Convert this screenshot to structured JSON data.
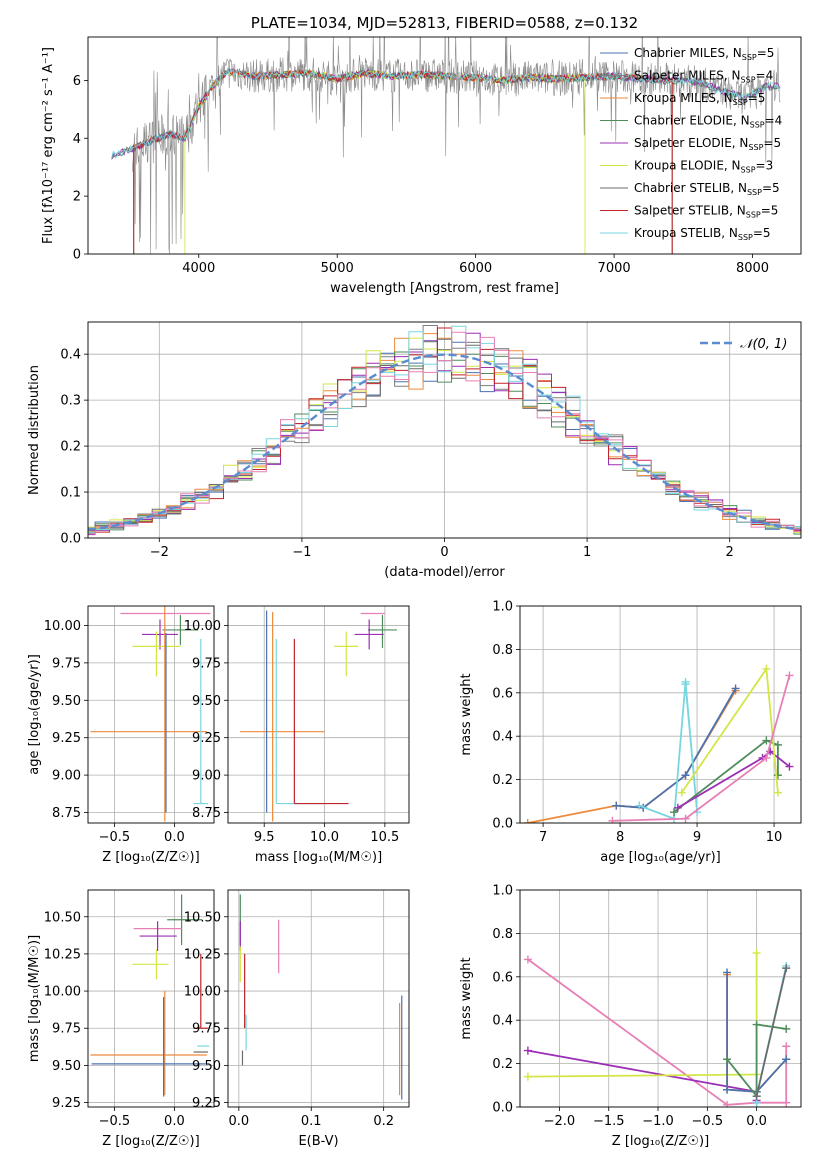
{
  "colors": {
    "Chabrier MILES": "#4c72b0",
    "Salpeter MILES": "#7f7f7f",
    "Kroupa MILES": "#ee8a3a",
    "Chabrier ELODIE": "#4f8d5b",
    "Salpeter ELODIE": "#9b2fb5",
    "Kroupa ELODIE": "#d4e645",
    "Chabrier STELIB": "#6b6b6b",
    "Salpeter STELIB": "#c0232a",
    "Kroupa STELIB": "#78d6e0",
    "Pink": "#e77fb5"
  },
  "chart_data": [
    {
      "id": "spectrum",
      "type": "line",
      "title": "PLATE=1034, MJD=52813, FIBERID=0588, z=0.132",
      "xlabel": "wavelength [Angstrom, rest frame]",
      "ylabel": "Flux [fλ10⁻¹⁷ erg cm⁻² s⁻¹ A⁻¹]",
      "xlim": [
        3200,
        8350
      ],
      "ylim": [
        0,
        7.5
      ],
      "xticks": [
        "4000",
        "5000",
        "6000",
        "7000",
        "8000"
      ],
      "yticks": [
        "0",
        "2",
        "4",
        "6"
      ],
      "grid": false,
      "legend_position": "right",
      "legend": [
        {
          "name": "Chabrier MILES",
          "label": "Chabrier MILES, N",
          "sub": "SSP",
          "tail": "=5"
        },
        {
          "name": "Salpeter MILES",
          "label": "Salpeter MILES, N",
          "sub": "SSP",
          "tail": "=4"
        },
        {
          "name": "Kroupa MILES",
          "label": "Kroupa MILES, N",
          "sub": "SSP",
          "tail": "=5"
        },
        {
          "name": "Chabrier ELODIE",
          "label": "Chabrier ELODIE, N",
          "sub": "SSP",
          "tail": "=4"
        },
        {
          "name": "Salpeter ELODIE",
          "label": "Salpeter ELODIE, N",
          "sub": "SSP",
          "tail": "=5"
        },
        {
          "name": "Kroupa ELODIE",
          "label": "Kroupa ELODIE, N",
          "sub": "SSP",
          "tail": "=3"
        },
        {
          "name": "Chabrier STELIB",
          "label": "Chabrier STELIB, N",
          "sub": "SSP",
          "tail": "=5"
        },
        {
          "name": "Salpeter STELIB",
          "label": "Salpeter STELIB, N",
          "sub": "SSP",
          "tail": "=5"
        },
        {
          "name": "Kroupa STELIB",
          "label": "Kroupa STELIB, N",
          "sub": "SSP",
          "tail": "=5"
        }
      ],
      "continuum": [
        [
          3370,
          3.4
        ],
        [
          3500,
          3.6
        ],
        [
          3650,
          3.9
        ],
        [
          3800,
          4.15
        ],
        [
          3900,
          4.0
        ],
        [
          4000,
          5.1
        ],
        [
          4100,
          5.8
        ],
        [
          4200,
          6.3
        ],
        [
          4400,
          6.15
        ],
        [
          4600,
          6.2
        ],
        [
          4800,
          6.25
        ],
        [
          5000,
          6.05
        ],
        [
          5200,
          6.25
        ],
        [
          5400,
          6.15
        ],
        [
          5600,
          6.2
        ],
        [
          5800,
          6.15
        ],
        [
          6000,
          6.1
        ],
        [
          6200,
          6.0
        ],
        [
          6400,
          6.1
        ],
        [
          6600,
          6.05
        ],
        [
          6800,
          6.1
        ],
        [
          7000,
          6.15
        ],
        [
          7200,
          6.05
        ],
        [
          7400,
          6.0
        ],
        [
          7600,
          5.95
        ],
        [
          7800,
          5.6
        ],
        [
          7950,
          5.4
        ],
        [
          8100,
          5.8
        ]
      ],
      "cutoffs": {
        "Chabrier MILES": [
          3530,
          7420
        ],
        "Salpeter MILES": [
          3530,
          7420
        ],
        "Kroupa MILES": [
          3530,
          7420
        ],
        "Kroupa ELODIE": [
          3900,
          6790
        ],
        "Salpeter STELIB": [
          3530,
          7420
        ]
      },
      "noise_range": [
        3520,
        8200
      ]
    },
    {
      "id": "residuals",
      "type": "step",
      "xlabel": "(data-model)/error",
      "ylabel": "Normed distribution",
      "xlim": [
        -2.5,
        2.5
      ],
      "ylim": [
        0,
        0.47
      ],
      "xticks": [
        "−2",
        "−1",
        "0",
        "1",
        "2"
      ],
      "yticks": [
        "0.0",
        "0.1",
        "0.2",
        "0.3",
        "0.4"
      ],
      "grid": true,
      "legend_position": "top-right",
      "gaussian_label": "𝒩(0, 1)",
      "bin_width": 0.1
    },
    {
      "id": "age-Z",
      "type": "errorbar",
      "xlabel": "Z [log₁₀(Z/Z☉)]",
      "ylabel": "age  [log₁₀(age/yr)]",
      "xlim": [
        -0.72,
        0.33
      ],
      "ylim": [
        8.68,
        10.13
      ],
      "xticks": [
        "−0.5",
        "0.0"
      ],
      "yticks": [
        "8.75",
        "9.00",
        "9.25",
        "9.50",
        "9.75",
        "10.00"
      ],
      "grid": true,
      "points": [
        {
          "series": "Pink",
          "x": -0.05,
          "y": 10.08,
          "xerr": [
            0.4,
            0.35
          ],
          "yerr": [
            0.0,
            0.0
          ]
        },
        {
          "series": "Chabrier ELODIE",
          "x": 0.05,
          "y": 9.97,
          "xerr": [
            0.15,
            0.15
          ],
          "yerr": [
            0.1,
            0.1
          ]
        },
        {
          "series": "Salpeter ELODIE",
          "x": -0.12,
          "y": 9.94,
          "xerr": [
            0.15,
            0.15
          ],
          "yerr": [
            0.1,
            0.1
          ]
        },
        {
          "series": "Kroupa ELODIE",
          "x": -0.15,
          "y": 9.86,
          "xerr": [
            0.2,
            0.2
          ],
          "yerr": [
            0.2,
            0.1
          ]
        },
        {
          "series": "Kroupa MILES",
          "x": -0.08,
          "y": 9.29,
          "xerr": [
            0.62,
            0.35
          ],
          "yerr": [
            0.6,
            0.85
          ]
        },
        {
          "series": "Kroupa STELIB",
          "x": 0.22,
          "y": 8.81,
          "xerr": [
            0.06,
            0.06
          ],
          "yerr": [
            0.0,
            1.1
          ]
        },
        {
          "series": "Chabrier MILES",
          "x": -0.07,
          "y": 9.85,
          "xerr": [
            0.0,
            0.0
          ],
          "yerr": [
            1.1,
            0.1
          ]
        }
      ]
    },
    {
      "id": "age-mass",
      "type": "errorbar",
      "xlabel": "mass [log₁₀(M/M☉)]",
      "ylabel": "",
      "xlim": [
        9.2,
        10.7
      ],
      "ylim": [
        8.68,
        10.13
      ],
      "xticks": [
        "9.5",
        "10.0",
        "10.5"
      ],
      "yticks": [
        "8.75",
        "9.00",
        "9.25",
        "9.50",
        "9.75",
        "10.00"
      ],
      "grid": true,
      "points": [
        {
          "series": "Pink",
          "x": 10.4,
          "y": 10.08,
          "xerr": [
            0.1,
            0.1
          ],
          "yerr": [
            0.0,
            0.0
          ]
        },
        {
          "series": "Chabrier ELODIE",
          "x": 10.48,
          "y": 9.97,
          "xerr": [
            0.12,
            0.12
          ],
          "yerr": [
            0.12,
            0.1
          ]
        },
        {
          "series": "Salpeter ELODIE",
          "x": 10.37,
          "y": 9.94,
          "xerr": [
            0.12,
            0.12
          ],
          "yerr": [
            0.1,
            0.1
          ]
        },
        {
          "series": "Kroupa ELODIE",
          "x": 10.18,
          "y": 9.86,
          "xerr": [
            0.1,
            0.1
          ],
          "yerr": [
            0.2,
            0.1
          ]
        },
        {
          "series": "Kroupa MILES",
          "x": 9.57,
          "y": 9.29,
          "xerr": [
            0.27,
            0.43
          ],
          "yerr": [
            0.6,
            0.8
          ]
        },
        {
          "series": "Kroupa STELIB",
          "x": 9.6,
          "y": 8.81,
          "xerr": [
            0.0,
            0.42
          ],
          "yerr": [
            0.0,
            1.1
          ]
        },
        {
          "series": "Salpeter STELIB",
          "x": 9.75,
          "y": 8.81,
          "xerr": [
            0.0,
            0.45
          ],
          "yerr": [
            0.0,
            1.1
          ]
        },
        {
          "series": "Chabrier MILES",
          "x": 9.52,
          "y": 9.85,
          "xerr": [
            0.0,
            0.0
          ],
          "yerr": [
            1.1,
            0.25
          ]
        }
      ]
    },
    {
      "id": "weight-age",
      "type": "line",
      "xlabel": "age  [log₁₀(age/yr)]",
      "ylabel": "mass weight",
      "xlim": [
        6.7,
        10.35
      ],
      "ylim": [
        0,
        1
      ],
      "xticks": [
        "7",
        "8",
        "9",
        "10"
      ],
      "yticks": [
        "0.0",
        "0.2",
        "0.4",
        "0.6",
        "0.8",
        "1.0"
      ],
      "grid": true,
      "series": [
        {
          "name": "Kroupa MILES",
          "x": [
            6.8,
            7.95,
            8.3,
            8.85,
            9.5
          ],
          "y": [
            0.0,
            0.08,
            0.07,
            0.22,
            0.61
          ]
        },
        {
          "name": "Chabrier MILES",
          "x": [
            7.95,
            8.3,
            8.85,
            9.5
          ],
          "y": [
            0.08,
            0.07,
            0.22,
            0.62
          ]
        },
        {
          "name": "Kroupa STELIB",
          "x": [
            8.25,
            8.7,
            8.85,
            9.0,
            8.85
          ],
          "y": [
            0.08,
            0.02,
            0.65,
            0.05,
            0.64
          ]
        },
        {
          "name": "Chabrier ELODIE",
          "x": [
            8.7,
            9.9,
            10.05,
            10.05
          ],
          "y": [
            0.05,
            0.38,
            0.36,
            0.22
          ]
        },
        {
          "name": "Salpeter ELODIE",
          "x": [
            8.75,
            9.85,
            9.95,
            10.2
          ],
          "y": [
            0.07,
            0.3,
            0.33,
            0.26
          ]
        },
        {
          "name": "Kroupa ELODIE",
          "x": [
            8.8,
            9.9,
            10.05
          ],
          "y": [
            0.14,
            0.71,
            0.14
          ]
        },
        {
          "name": "Pink",
          "x": [
            7.9,
            8.85,
            9.9,
            10.2
          ],
          "y": [
            0.01,
            0.02,
            0.3,
            0.68
          ]
        }
      ]
    },
    {
      "id": "mass-Z",
      "type": "errorbar",
      "xlabel": "Z [log₁₀(Z/Z☉)]",
      "ylabel": "mass [log₁₀(M/M☉)]",
      "xlim": [
        -0.72,
        0.33
      ],
      "ylim": [
        9.22,
        10.68
      ],
      "xticks": [
        "−0.5",
        "0.0"
      ],
      "yticks": [
        "9.25",
        "9.50",
        "9.75",
        "10.00",
        "10.25",
        "10.50"
      ],
      "grid": true,
      "points": [
        {
          "series": "Chabrier ELODIE",
          "x": 0.06,
          "y": 10.48,
          "xerr": [
            0.12,
            0.17
          ],
          "yerr": [
            0.17,
            0.17
          ]
        },
        {
          "series": "Pink",
          "x": -0.09,
          "y": 10.42,
          "xerr": [
            0.25,
            0.15
          ],
          "yerr": [
            0.0,
            0.0
          ]
        },
        {
          "series": "Salpeter ELODIE",
          "x": -0.14,
          "y": 10.37,
          "xerr": [
            0.15,
            0.16
          ],
          "yerr": [
            0.1,
            0.1
          ]
        },
        {
          "series": "Kroupa ELODIE",
          "x": -0.15,
          "y": 10.18,
          "xerr": [
            0.2,
            0.1
          ],
          "yerr": [
            0.1,
            0.1
          ]
        },
        {
          "series": "Salpeter STELIB",
          "x": 0.22,
          "y": 9.75,
          "xerr": [
            0.06,
            0.06
          ],
          "yerr": [
            0.0,
            0.5
          ]
        },
        {
          "series": "Kroupa STELIB",
          "x": 0.25,
          "y": 9.63,
          "xerr": [
            0.06,
            0.04
          ],
          "yerr": [
            0.0,
            0.0
          ]
        },
        {
          "series": "Chabrier STELIB",
          "x": 0.22,
          "y": 9.59,
          "xerr": [
            0.06,
            0.06
          ],
          "yerr": [
            0.0,
            0.0
          ]
        },
        {
          "series": "Kroupa MILES",
          "x": -0.08,
          "y": 9.57,
          "xerr": [
            0.62,
            0.35
          ],
          "yerr": [
            0.27,
            0.43
          ]
        },
        {
          "series": "Chabrier MILES",
          "x": -0.09,
          "y": 9.51,
          "xerr": [
            0.6,
            0.35
          ],
          "yerr": [
            0.22,
            0.45
          ]
        }
      ]
    },
    {
      "id": "mass-ebv",
      "type": "errorbar",
      "xlabel": "E(B-V)",
      "ylabel": "",
      "xlim": [
        -0.015,
        0.235
      ],
      "ylim": [
        9.22,
        10.68
      ],
      "xticks": [
        "0.0",
        "0.1",
        "0.2"
      ],
      "yticks": [
        "9.25",
        "9.50",
        "9.75",
        "10.00",
        "10.25",
        "10.50"
      ],
      "grid": true,
      "points": [
        {
          "series": "Chabrier ELODIE",
          "x": 0.002,
          "y": 10.48,
          "xerr": [
            0,
            0
          ],
          "yerr": [
            0.17,
            0.17
          ]
        },
        {
          "series": "Salpeter ELODIE",
          "x": 0.002,
          "y": 10.37,
          "xerr": [
            0,
            0
          ],
          "yerr": [
            0.1,
            0.1
          ]
        },
        {
          "series": "Pink",
          "x": 0.055,
          "y": 10.3,
          "xerr": [
            0,
            0
          ],
          "yerr": [
            0.18,
            0.18
          ]
        },
        {
          "series": "Kroupa ELODIE",
          "x": 0.002,
          "y": 10.18,
          "xerr": [
            0,
            0
          ],
          "yerr": [
            0.12,
            0.12
          ]
        },
        {
          "series": "Salpeter STELIB",
          "x": 0.008,
          "y": 10.0,
          "xerr": [
            0,
            0
          ],
          "yerr": [
            0.25,
            0.25
          ]
        },
        {
          "series": "Kroupa STELIB",
          "x": 0.01,
          "y": 9.72,
          "xerr": [
            0,
            0
          ],
          "yerr": [
            0.12,
            0.12
          ]
        },
        {
          "series": "Chabrier STELIB",
          "x": 0.005,
          "y": 9.55,
          "xerr": [
            0,
            0
          ],
          "yerr": [
            0.05,
            0.05
          ]
        },
        {
          "series": "Kroupa MILES",
          "x": 0.222,
          "y": 9.57,
          "xerr": [
            0,
            0
          ],
          "yerr": [
            0.27,
            0.35
          ]
        },
        {
          "series": "Chabrier MILES",
          "x": 0.225,
          "y": 9.52,
          "xerr": [
            0,
            0
          ],
          "yerr": [
            0.25,
            0.45
          ]
        }
      ]
    },
    {
      "id": "weight-Z",
      "type": "line",
      "xlabel": "Z [log₁₀(Z/Z☉)]",
      "ylabel": "mass weight",
      "xlim": [
        -2.4,
        0.45
      ],
      "ylim": [
        0,
        1
      ],
      "xticks": [
        "−2.0",
        "−1.5",
        "−1.0",
        "−0.5",
        "0.0"
      ],
      "yticks": [
        "0.0",
        "0.2",
        "0.4",
        "0.6",
        "0.8",
        "1.0"
      ],
      "grid": true,
      "series": [
        {
          "name": "Pink",
          "x": [
            -2.32,
            -0.3,
            0.0,
            0.3,
            0.3
          ],
          "y": [
            0.68,
            0.01,
            0.02,
            0.02,
            0.28
          ]
        },
        {
          "name": "Salpeter ELODIE",
          "x": [
            -2.32,
            0.0,
            0.0
          ],
          "y": [
            0.26,
            0.07,
            0.03
          ]
        },
        {
          "name": "Kroupa ELODIE",
          "x": [
            -2.32,
            0.0,
            0.0
          ],
          "y": [
            0.14,
            0.15,
            0.71
          ]
        },
        {
          "name": "Kroupa MILES",
          "x": [
            -0.3,
            -0.3,
            0.0,
            0.3,
            0.3
          ],
          "y": [
            0.61,
            0.08,
            0.07,
            0.22,
            0.22
          ]
        },
        {
          "name": "Chabrier MILES",
          "x": [
            -0.3,
            -0.3,
            0.0,
            0.3
          ],
          "y": [
            0.62,
            0.08,
            0.07,
            0.22
          ]
        },
        {
          "name": "Chabrier ELODIE",
          "x": [
            -0.3,
            0.0,
            0.0,
            0.3
          ],
          "y": [
            0.22,
            0.05,
            0.38,
            0.36
          ]
        },
        {
          "name": "Kroupa STELIB",
          "x": [
            0.0,
            0.0,
            0.3
          ],
          "y": [
            0.02,
            0.05,
            0.65
          ]
        },
        {
          "name": "Chabrier STELIB",
          "x": [
            0.0,
            0.3
          ],
          "y": [
            0.05,
            0.64
          ]
        }
      ]
    }
  ]
}
